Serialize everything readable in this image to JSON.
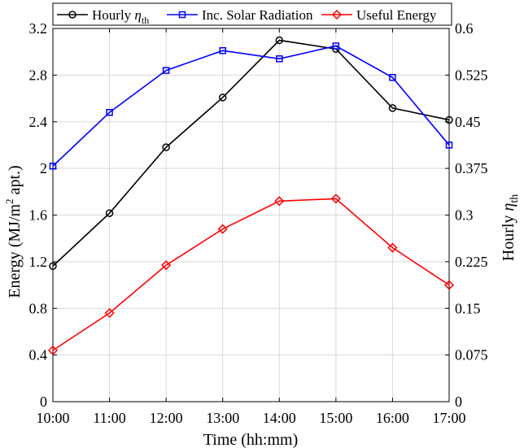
{
  "chart_data": {
    "type": "line",
    "title": "",
    "x": [
      "10:00",
      "11:00",
      "12:00",
      "13:00",
      "14:00",
      "15:00",
      "16:00",
      "17:00"
    ],
    "xlabel": "Time (hh:mm)",
    "ylabel_left": "Energy (MJ/m² apt.)",
    "ylabel_right": "Hourly ηth",
    "ylim_left": [
      0,
      3.2
    ],
    "ylim_right": [
      0,
      0.6
    ],
    "yticks_left": [
      "0",
      "0.4",
      "0.8",
      "1.2",
      "1.6",
      "2",
      "2.4",
      "2.8",
      "3.2"
    ],
    "yticks_right": [
      "0",
      "0.075",
      "0.15",
      "0.225",
      "0.3",
      "0.375",
      "0.45",
      "0.525",
      "0.6"
    ],
    "grid": true,
    "legend_position": "top",
    "series": [
      {
        "name": "Hourly ηth",
        "axis": "right",
        "color": "#000000",
        "marker": "circle",
        "values": [
          0.218,
          0.303,
          0.409,
          0.489,
          0.581,
          0.567,
          0.472,
          0.453
        ]
      },
      {
        "name": "Inc. Solar Radiation",
        "axis": "left",
        "color": "#0000ff",
        "marker": "square",
        "values": [
          2.02,
          2.48,
          2.84,
          3.01,
          2.94,
          3.05,
          2.78,
          2.2
        ]
      },
      {
        "name": "Useful Energy",
        "axis": "left",
        "color": "#ff0000",
        "marker": "diamond",
        "values": [
          0.44,
          0.76,
          1.17,
          1.48,
          1.72,
          1.74,
          1.32,
          1.0
        ]
      }
    ]
  }
}
